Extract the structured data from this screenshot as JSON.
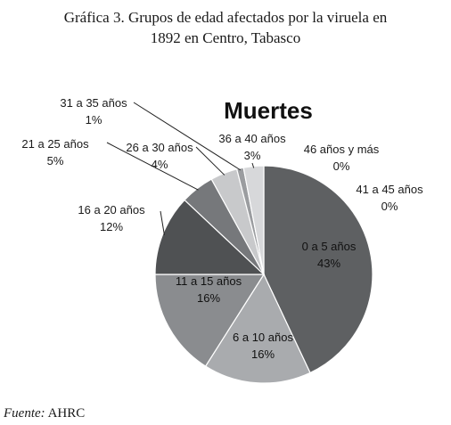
{
  "caption": {
    "line1": "Gráfica 3. Grupos de edad afectados por la viruela en",
    "line2": "1892 en Centro, Tabasco"
  },
  "source": {
    "prefix": "Fuente:",
    "text": "AHRC"
  },
  "chart_data": {
    "type": "pie",
    "title": "Muertes",
    "slices": [
      {
        "label": "0 a 5 años",
        "pct_label": "43%",
        "value": 43,
        "color": "#5e6062"
      },
      {
        "label": "6 a 10 años",
        "pct_label": "16%",
        "value": 16,
        "color": "#a9abae"
      },
      {
        "label": "11 a 15 años",
        "pct_label": "16%",
        "value": 16,
        "color": "#8a8c8f"
      },
      {
        "label": "16 a 20 años",
        "pct_label": "12%",
        "value": 12,
        "color": "#4f5153"
      },
      {
        "label": "21 a 25 años",
        "pct_label": "5%",
        "value": 5,
        "color": "#76787b"
      },
      {
        "label": "26 a 30 años",
        "pct_label": "4%",
        "value": 4,
        "color": "#c8c9cb"
      },
      {
        "label": "31 a 35 años",
        "pct_label": "1%",
        "value": 1,
        "color": "#9b9da0"
      },
      {
        "label": "36 a 40 años",
        "pct_label": "3%",
        "value": 3,
        "color": "#d7d8da"
      },
      {
        "label": "41 a 45 años",
        "pct_label": "0%",
        "value": 0,
        "color": "#6b6d70"
      },
      {
        "label": "46 años y más",
        "pct_label": "0%",
        "value": 0,
        "color": "#8e9093"
      }
    ]
  }
}
